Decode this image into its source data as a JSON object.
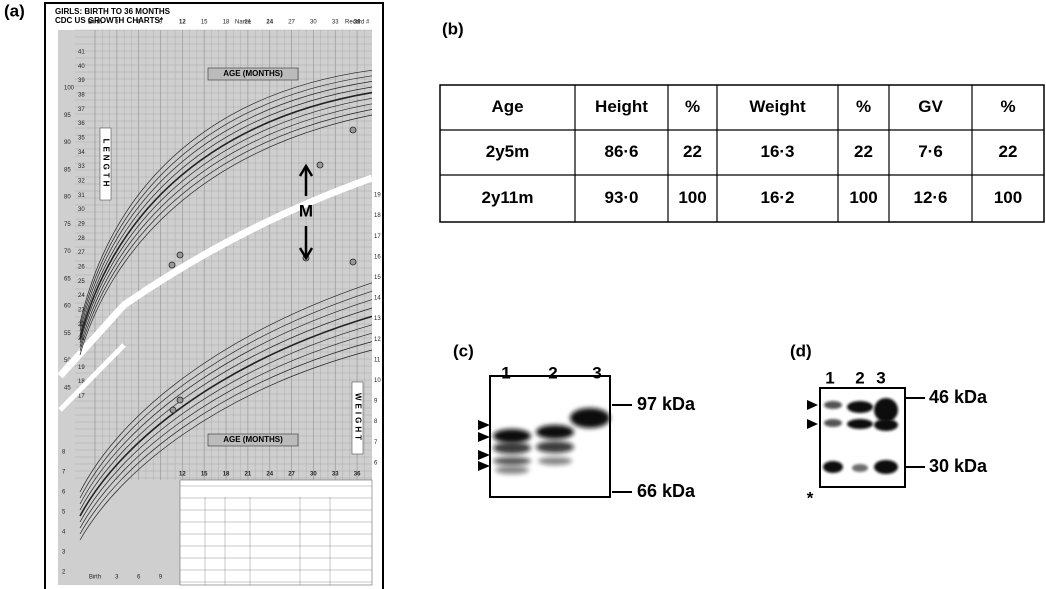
{
  "panels": {
    "a": {
      "label": "(a)",
      "title_lines": [
        "GIRLS: BIRTH TO 36 MONTHS",
        "CDC US GROWTH CHARTS*"
      ],
      "name_label": "Name",
      "record_label": "Record #",
      "top_ages": [
        "Birth",
        "3",
        "6",
        "9",
        "12",
        "15",
        "18",
        "21",
        "24",
        "27",
        "30",
        "33",
        "36"
      ],
      "axis_title": "AGE (MONTHS)",
      "length_label": "LENGTH",
      "weight_label": "WEIGHT",
      "length_cm": [
        100,
        95,
        90,
        85,
        80,
        75,
        70,
        65,
        60,
        55,
        50,
        45
      ],
      "length_in": [
        41,
        40,
        39,
        38,
        37,
        36,
        35,
        34,
        33,
        32,
        31,
        30,
        29,
        28,
        27,
        26,
        25,
        24,
        23,
        22,
        21,
        20,
        19,
        18,
        17
      ],
      "weight_kg_left": [
        8,
        7,
        6,
        5,
        4,
        3,
        2
      ],
      "weight_kg_right": [
        19,
        18,
        17,
        16,
        15,
        14,
        13,
        12,
        11,
        10,
        9,
        8,
        7,
        6
      ],
      "bottom_ages": [
        "12",
        "15",
        "18",
        "21",
        "24",
        "27",
        "30",
        "33",
        "36"
      ],
      "birth_ages": [
        "Birth",
        "3",
        "6",
        "9"
      ],
      "marker": "M"
    },
    "b": {
      "label": "(b)",
      "table": {
        "header": [
          "Age",
          "Height",
          "%",
          "Weight",
          "%",
          "GV",
          "%"
        ],
        "rows": [
          [
            "2y5m",
            "86·6",
            "22",
            "16·3",
            "22",
            "7·6",
            "22"
          ],
          [
            "2y11m",
            "93·0",
            "100",
            "16·2",
            "100",
            "12·6",
            "100"
          ]
        ]
      }
    },
    "c": {
      "label": "(c)",
      "lanes": [
        "1",
        "2",
        "3"
      ],
      "markers": [
        "97 kDa",
        "66 kDa"
      ]
    },
    "d": {
      "label": "(d)",
      "lanes": [
        "1",
        "2",
        "3"
      ],
      "markers": [
        "46 kDa",
        "30 kDa"
      ],
      "asterisk": "*"
    }
  }
}
